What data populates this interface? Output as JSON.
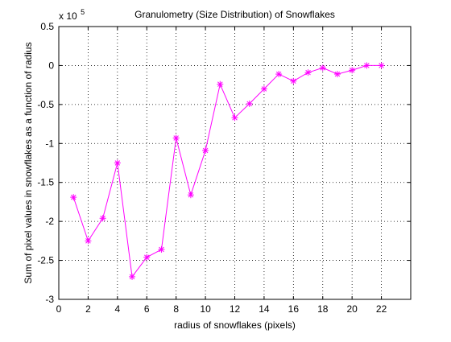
{
  "chart_data": {
    "type": "line",
    "title": "Granulometry (Size Distribution) of Snowflakes",
    "xlabel": "radius of snowflakes (pixels)",
    "ylabel": "Sum of pixel values in snowflakes as a function of radius",
    "exponent_label": {
      "base": "x 10",
      "power": "5"
    },
    "xlim": [
      0,
      24
    ],
    "ylim": [
      -3,
      0.5
    ],
    "xticks": [
      0,
      2,
      4,
      6,
      8,
      10,
      12,
      14,
      16,
      18,
      20,
      22
    ],
    "xtick_labels": [
      "0",
      "2",
      "4",
      "6",
      "8",
      "10",
      "12",
      "14",
      "16",
      "18",
      "20",
      "22"
    ],
    "yticks": [
      0.5,
      0,
      -0.5,
      -1,
      -1.5,
      -2,
      -2.5,
      -3
    ],
    "ytick_labels": [
      "0.5",
      "0",
      "-0.5",
      "-1",
      "-1.5",
      "-2",
      "-2.5",
      "-3"
    ],
    "grid": true,
    "series_color": "#ff00ff",
    "marker": "asterisk",
    "series": [
      {
        "x": [
          1,
          2,
          3,
          4,
          5,
          6,
          7,
          8,
          9,
          10,
          11,
          12,
          13,
          14,
          15,
          16,
          17,
          18,
          19,
          20,
          21,
          22
        ],
        "y": [
          -1.69,
          -2.25,
          -1.96,
          -1.25,
          -2.71,
          -2.46,
          -2.36,
          -0.93,
          -1.66,
          -1.09,
          -0.24,
          -0.67,
          -0.49,
          -0.3,
          -0.11,
          -0.2,
          -0.09,
          -0.03,
          -0.11,
          -0.06,
          0.0,
          0.0
        ]
      }
    ]
  }
}
